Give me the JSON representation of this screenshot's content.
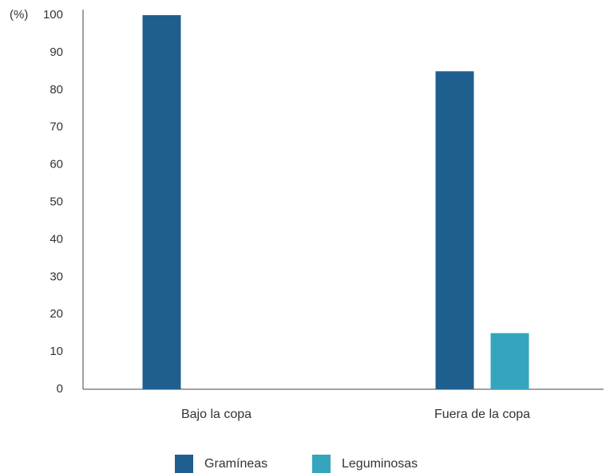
{
  "chart_data": {
    "type": "bar",
    "ylabel": "(%)",
    "ylim": [
      0,
      100
    ],
    "yticks": [
      0,
      10,
      20,
      30,
      40,
      50,
      60,
      70,
      80,
      90,
      100
    ],
    "categories": [
      "Bajo la copa",
      "Fuera de la copa"
    ],
    "series": [
      {
        "name": "Gramíneas",
        "color": "#1f5f8f",
        "values": [
          100,
          85
        ]
      },
      {
        "name": "Leguminosas",
        "color": "#34a5bd",
        "values": [
          0,
          15
        ]
      }
    ],
    "grid": false,
    "legend_position": "bottom-center"
  }
}
